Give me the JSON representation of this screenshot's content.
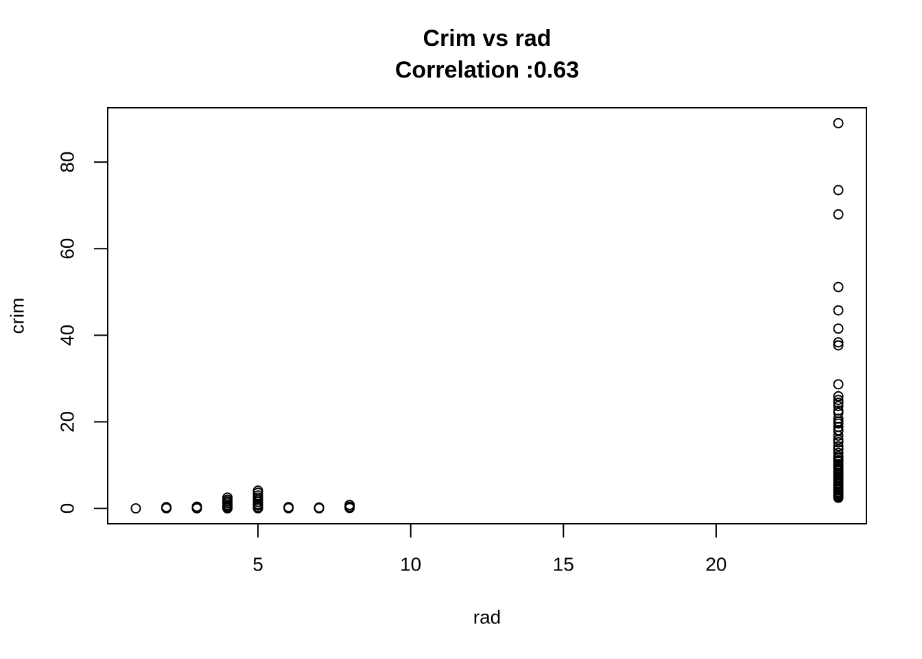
{
  "chart_data": {
    "type": "scatter",
    "title": "Crim vs rad",
    "subtitle": "Correlation :0.63",
    "x_label": "rad",
    "y_label": "crim",
    "color": "#000000",
    "x": [
      1,
      2,
      2,
      2,
      3,
      3,
      3,
      4,
      4,
      4,
      4,
      4,
      4,
      4,
      4,
      5,
      5,
      5,
      5,
      5,
      5,
      5,
      5,
      5,
      5,
      6,
      6,
      7,
      7,
      8,
      8,
      8,
      24,
      24,
      24,
      24,
      24,
      24,
      24,
      24,
      24,
      24,
      24,
      24,
      24,
      24,
      24,
      24,
      24,
      24,
      24,
      24,
      24,
      24,
      24,
      24,
      24,
      24,
      24,
      24,
      24,
      24,
      24,
      24,
      24,
      24,
      24,
      24,
      24,
      24,
      24,
      24,
      24,
      24,
      24,
      24,
      24,
      24,
      24,
      24,
      24,
      24,
      24,
      24,
      24,
      24,
      24,
      24,
      24
    ],
    "values": [
      0.006,
      0.03,
      0.1,
      0.3,
      0.02,
      0.1,
      0.4,
      0.01,
      0.2,
      0.5,
      0.8,
      1.2,
      1.6,
      2.0,
      2.5,
      0.02,
      0.3,
      0.7,
      1.0,
      1.5,
      2.0,
      2.5,
      3.0,
      3.6,
      4.1,
      0.05,
      0.3,
      0.03,
      0.2,
      0.1,
      0.4,
      0.8,
      88.98,
      73.53,
      67.92,
      51.14,
      45.75,
      41.53,
      38.35,
      37.66,
      28.66,
      25.9,
      25.05,
      24.39,
      23.65,
      22.6,
      22.05,
      20.72,
      20.08,
      19.61,
      18.81,
      18.08,
      17.87,
      16.81,
      15.88,
      15.29,
      14.33,
      13.68,
      12.8,
      12.05,
      11.57,
      11.11,
      10.83,
      10.23,
      9.92,
      9.72,
      9.34,
      8.98,
      8.72,
      8.27,
      8.05,
      7.83,
      7.4,
      7.05,
      6.8,
      6.44,
      5.82,
      5.73,
      5.29,
      4.87,
      4.54,
      4.22,
      3.84,
      3.68,
      3.47,
      3.16,
      2.92,
      2.73,
      2.45
    ],
    "xlim": [
      0.08,
      24.92
    ],
    "ylim": [
      -3.55,
      92.54
    ],
    "xticks": [
      5,
      10,
      15,
      20
    ],
    "yticks": [
      0,
      20,
      40,
      60,
      80
    ]
  }
}
